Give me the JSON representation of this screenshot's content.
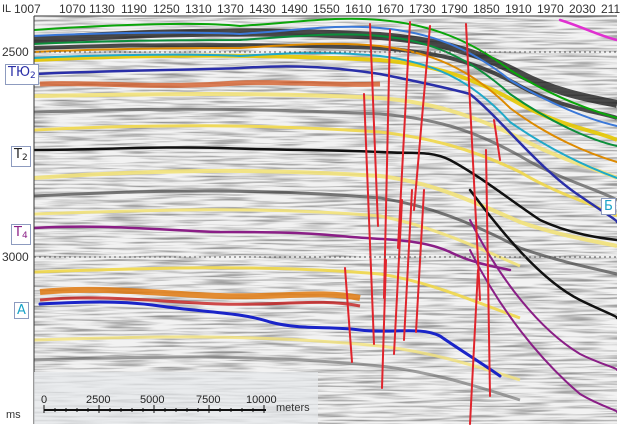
{
  "axis": {
    "corner_label": "IL",
    "top_ticks": [
      "1007",
      "1070",
      "1130",
      "1190",
      "1250",
      "1310",
      "1370",
      "1430",
      "1490",
      "1550",
      "1610",
      "1670",
      "1730",
      "1790",
      "1850",
      "1910",
      "1970",
      "2030",
      "211"
    ],
    "depth_labels": [
      "2500",
      "3000"
    ],
    "unit_label": "ms"
  },
  "horizons": [
    {
      "main": "ТЮ",
      "sub": "2",
      "color": "#2a2fa8"
    },
    {
      "main": "T",
      "sub": "2",
      "color": "#222222"
    },
    {
      "main": "T",
      "sub": "4",
      "color": "#8a1e86"
    },
    {
      "main": "A",
      "sub": "",
      "color": "#1aa3c8"
    },
    {
      "main": "Б",
      "sub": "",
      "color": "#1aa3c8"
    }
  ],
  "scale_bar": {
    "labels": [
      "0",
      "2500",
      "5000",
      "7500",
      "10000"
    ],
    "unit": "meters"
  }
}
